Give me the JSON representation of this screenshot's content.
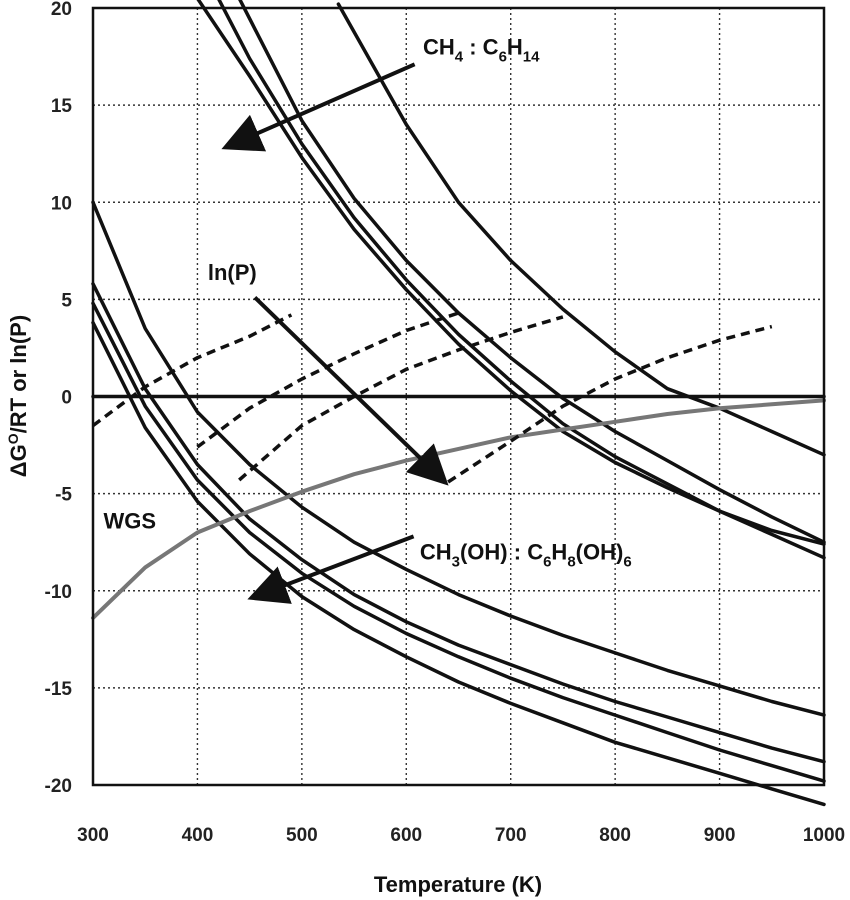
{
  "chart_data": {
    "type": "line",
    "xlabel": "Temperature (K)",
    "ylabel_parts": [
      "ΔG",
      "O",
      "/RT or ln(P)"
    ],
    "xlim": [
      300,
      1000
    ],
    "ylim": [
      -20,
      20
    ],
    "x_ticks": [
      300,
      400,
      500,
      600,
      700,
      800,
      900,
      1000
    ],
    "y_ticks": [
      20,
      15,
      10,
      5,
      0,
      -5,
      -10,
      -15,
      -20
    ],
    "grid": true,
    "series": [
      {
        "group": "alkane",
        "style": "solid",
        "color": "#111111",
        "x": [
          400,
          450,
          500,
          550,
          600,
          650,
          700,
          750,
          800,
          850,
          900,
          950,
          1000
        ],
        "y": [
          20.5,
          16.5,
          12.3,
          8.6,
          5.5,
          2.7,
          0.3,
          -1.8,
          -3.4,
          -4.7,
          -5.9,
          -6.9,
          -7.6
        ]
      },
      {
        "group": "alkane",
        "style": "solid",
        "color": "#111111",
        "x": [
          420,
          450,
          500,
          550,
          600,
          650,
          700,
          750,
          800,
          850,
          900,
          950,
          1000
        ],
        "y": [
          20.5,
          17.4,
          13.0,
          9.2,
          6.0,
          3.2,
          0.8,
          -1.4,
          -3.1,
          -4.5,
          -5.9,
          -7.1,
          -8.3
        ]
      },
      {
        "group": "alkane",
        "style": "solid",
        "color": "#111111",
        "x": [
          440,
          500,
          550,
          600,
          650,
          700,
          750,
          800,
          850,
          900,
          950,
          1000
        ],
        "y": [
          20.5,
          14.2,
          10.2,
          7.0,
          4.3,
          2.0,
          -0.1,
          -1.8,
          -3.3,
          -4.8,
          -6.2,
          -7.5
        ]
      },
      {
        "group": "alkane",
        "style": "solid",
        "color": "#111111",
        "x": [
          535,
          600,
          650,
          700,
          750,
          800,
          850,
          900,
          950,
          1000
        ],
        "y": [
          20.2,
          14.0,
          10.0,
          7.0,
          4.5,
          2.3,
          0.4,
          -0.6,
          -1.8,
          -3.0
        ]
      },
      {
        "group": "alcohol",
        "style": "solid",
        "color": "#111111",
        "x": [
          300,
          350,
          400,
          450,
          500,
          550,
          600,
          650,
          700,
          750,
          800,
          850,
          900,
          950,
          1000
        ],
        "y": [
          10.0,
          3.5,
          -0.8,
          -3.5,
          -5.7,
          -7.5,
          -8.9,
          -10.2,
          -11.3,
          -12.3,
          -13.2,
          -14.1,
          -14.9,
          -15.7,
          -16.4
        ]
      },
      {
        "group": "alcohol",
        "style": "solid",
        "color": "#111111",
        "x": [
          300,
          350,
          400,
          450,
          500,
          550,
          600,
          650,
          700,
          750,
          800,
          850,
          900,
          950,
          1000
        ],
        "y": [
          5.8,
          0.4,
          -3.5,
          -6.3,
          -8.4,
          -10.2,
          -11.6,
          -12.8,
          -13.8,
          -14.8,
          -15.7,
          -16.5,
          -17.3,
          -18.1,
          -18.8
        ]
      },
      {
        "group": "alcohol",
        "style": "solid",
        "color": "#111111",
        "x": [
          300,
          350,
          400,
          450,
          500,
          550,
          600,
          650,
          700,
          750,
          800,
          850,
          900,
          950,
          1000
        ],
        "y": [
          4.8,
          -0.5,
          -4.3,
          -7.0,
          -9.1,
          -10.8,
          -12.2,
          -13.4,
          -14.5,
          -15.5,
          -16.4,
          -17.3,
          -18.2,
          -19.0,
          -19.8
        ]
      },
      {
        "group": "alcohol",
        "style": "solid",
        "color": "#111111",
        "x": [
          300,
          350,
          400,
          450,
          500,
          550,
          600,
          650,
          700,
          750,
          800,
          850,
          900,
          950,
          1000
        ],
        "y": [
          3.8,
          -1.6,
          -5.4,
          -8.1,
          -10.3,
          -12.0,
          -13.4,
          -14.7,
          -15.8,
          -16.8,
          -17.8,
          -18.6,
          -19.4,
          -20.2,
          -21.0
        ]
      },
      {
        "group": "zero",
        "style": "solid",
        "color": "#111111",
        "x": [
          300,
          1000
        ],
        "y": [
          0,
          0
        ]
      },
      {
        "group": "wgs",
        "style": "solid",
        "color": "#777777",
        "x": [
          300,
          350,
          400,
          450,
          500,
          550,
          600,
          650,
          700,
          750,
          800,
          850,
          900,
          950,
          1000
        ],
        "y": [
          -11.4,
          -8.8,
          -7.0,
          -5.9,
          -4.9,
          -4.0,
          -3.3,
          -2.7,
          -2.1,
          -1.7,
          -1.3,
          -0.9,
          -0.6,
          -0.4,
          -0.2
        ]
      },
      {
        "group": "lnP",
        "style": "dashed",
        "color": "#111111",
        "x": [
          300,
          350,
          400,
          450,
          490
        ],
        "y": [
          -1.5,
          0.5,
          2.0,
          3.1,
          4.2
        ]
      },
      {
        "group": "lnP",
        "style": "dashed",
        "color": "#111111",
        "x": [
          400,
          450,
          500,
          550,
          600,
          650
        ],
        "y": [
          -2.6,
          -0.6,
          0.9,
          2.2,
          3.4,
          4.3
        ]
      },
      {
        "group": "lnP",
        "style": "dashed",
        "color": "#111111",
        "x": [
          440,
          500,
          550,
          600,
          650,
          700,
          750
        ],
        "y": [
          -4.3,
          -1.5,
          0.0,
          1.4,
          2.4,
          3.3,
          4.1
        ]
      },
      {
        "group": "lnP",
        "style": "dashed",
        "color": "#111111",
        "x": [
          640,
          700,
          750,
          800,
          850,
          900,
          950
        ],
        "y": [
          -4.4,
          -2.3,
          -0.5,
          0.9,
          2.0,
          2.9,
          3.6
        ]
      }
    ],
    "annotations": [
      {
        "name": "alkane-label",
        "parts": [
          [
            "CH",
            ""
          ],
          [
            "4",
            "sub"
          ],
          [
            " : C",
            ""
          ],
          [
            "6",
            "sub"
          ],
          [
            "H",
            ""
          ],
          [
            "14",
            "sub"
          ]
        ],
        "x": 616,
        "y": 17.6
      },
      {
        "name": "lnp-label",
        "parts": [
          [
            "ln(P)",
            ""
          ]
        ],
        "x": 410,
        "y": 6.0
      },
      {
        "name": "wgs-label",
        "parts": [
          [
            "WGS",
            ""
          ]
        ],
        "x": 310,
        "y": -6.8
      },
      {
        "name": "alcohol-label",
        "parts": [
          [
            "CH",
            ""
          ],
          [
            "3",
            "sub"
          ],
          [
            "(OH) : C",
            ""
          ],
          [
            "6",
            "sub"
          ],
          [
            "H",
            ""
          ],
          [
            "8",
            "sub"
          ],
          [
            "(OH)",
            ""
          ],
          [
            "6",
            "sub"
          ]
        ],
        "x": 613,
        "y": -8.4
      }
    ],
    "arrows": [
      {
        "name": "alkane-arrow",
        "from": [
          608,
          17.1
        ],
        "to": [
          430,
          12.9
        ]
      },
      {
        "name": "lnp-arrow",
        "from": [
          455,
          5.1
        ],
        "to": [
          635,
          -4.3
        ]
      },
      {
        "name": "alcohol-arrow",
        "from": [
          607,
          -7.2
        ],
        "to": [
          455,
          -10.3
        ]
      }
    ]
  }
}
